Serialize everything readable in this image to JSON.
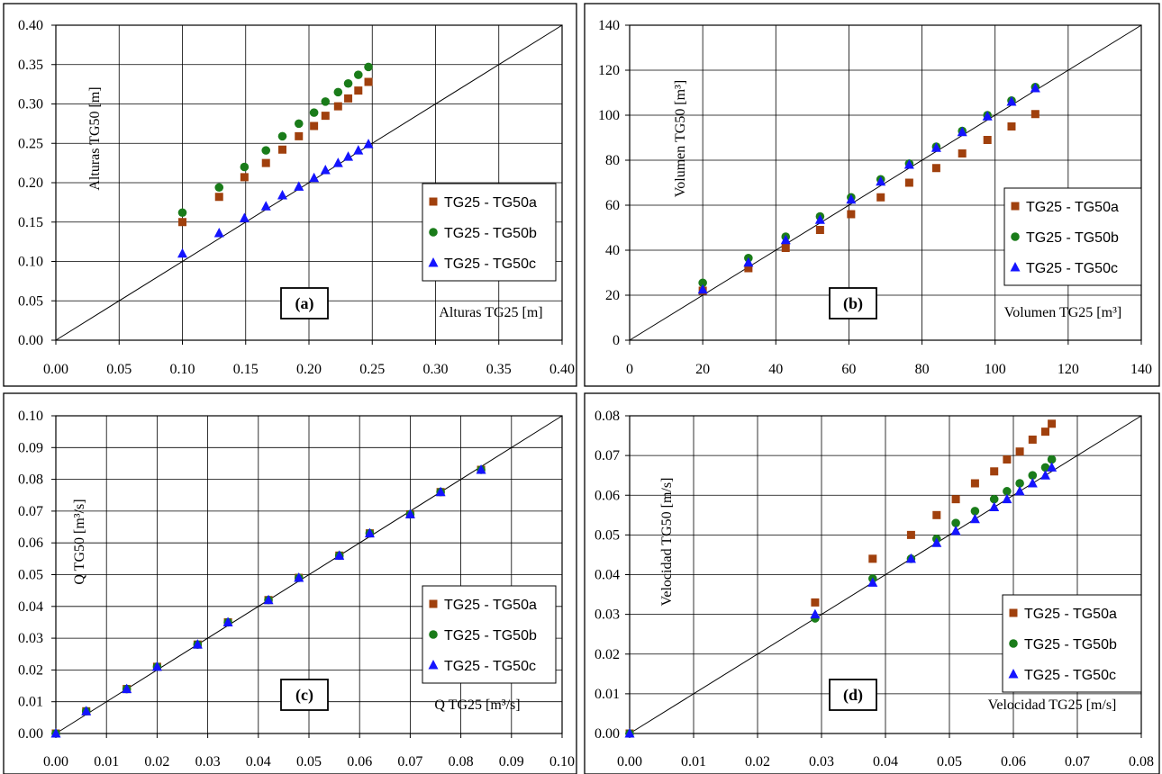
{
  "colors": {
    "series_a": "#a0400d",
    "series_b": "#1a7c1a",
    "series_c": "#1414ff",
    "grid": "#000000",
    "frame": "#000000"
  },
  "chart_data": [
    {
      "type": "scatter",
      "panel_label": "(a)",
      "xlabel": "Alturas TG25 [m]",
      "ylabel": "Alturas TG50 [m]",
      "xlim": [
        0,
        0.4
      ],
      "ylim": [
        0,
        0.4
      ],
      "x_ticks": [
        "0.00",
        "0.05",
        "0.10",
        "0.15",
        "0.20",
        "0.25",
        "0.30",
        "0.35",
        "0.40"
      ],
      "y_ticks": [
        "0.00",
        "0.05",
        "0.10",
        "0.15",
        "0.20",
        "0.25",
        "0.30",
        "0.35",
        "0.40"
      ],
      "grid": true,
      "identity_line": true,
      "legend_position": "right",
      "series": [
        {
          "name": "TG25 - TG50a",
          "marker": "square",
          "color": "#a0400d",
          "x": [
            0.1,
            0.129,
            0.149,
            0.166,
            0.179,
            0.192,
            0.204,
            0.213,
            0.223,
            0.231,
            0.239,
            0.247
          ],
          "y": [
            0.15,
            0.182,
            0.207,
            0.225,
            0.242,
            0.259,
            0.272,
            0.285,
            0.297,
            0.307,
            0.317,
            0.328
          ]
        },
        {
          "name": "TG25 - TG50b",
          "marker": "circle",
          "color": "#1a7c1a",
          "x": [
            0.1,
            0.129,
            0.149,
            0.166,
            0.179,
            0.192,
            0.204,
            0.213,
            0.223,
            0.231,
            0.239,
            0.247
          ],
          "y": [
            0.162,
            0.194,
            0.22,
            0.241,
            0.259,
            0.275,
            0.289,
            0.303,
            0.315,
            0.326,
            0.337,
            0.347
          ]
        },
        {
          "name": "TG25 - TG50c",
          "marker": "triangle",
          "color": "#1414ff",
          "x": [
            0.1,
            0.129,
            0.149,
            0.166,
            0.179,
            0.192,
            0.204,
            0.213,
            0.223,
            0.231,
            0.239,
            0.247
          ],
          "y": [
            0.11,
            0.136,
            0.155,
            0.17,
            0.184,
            0.195,
            0.206,
            0.216,
            0.225,
            0.233,
            0.241,
            0.249
          ]
        }
      ]
    },
    {
      "type": "scatter",
      "panel_label": "(b)",
      "xlabel": "Volumen TG25 [m³]",
      "ylabel": "Volumen TG50 [m³]",
      "xlim": [
        0,
        140
      ],
      "ylim": [
        0,
        140
      ],
      "x_ticks": [
        "0",
        "20",
        "40",
        "60",
        "80",
        "100",
        "120",
        "140"
      ],
      "y_ticks": [
        "0",
        "20",
        "40",
        "60",
        "80",
        "100",
        "120",
        "140"
      ],
      "grid": true,
      "identity_line": true,
      "legend_position": "right",
      "series": [
        {
          "name": "TG25 - TG50a",
          "marker": "square",
          "color": "#a0400d",
          "x": [
            20,
            32.5,
            42.7,
            52.1,
            60.6,
            68.7,
            76.5,
            83.9,
            91,
            97.9,
            104.5,
            111
          ],
          "y": [
            22,
            32,
            41,
            49,
            56,
            63.5,
            70,
            76.5,
            83,
            89,
            95,
            100.5
          ]
        },
        {
          "name": "TG25 - TG50b",
          "marker": "circle",
          "color": "#1a7c1a",
          "x": [
            20,
            32.5,
            42.7,
            52.1,
            60.6,
            68.7,
            76.5,
            83.9,
            91,
            97.9,
            104.5,
            111
          ],
          "y": [
            25.5,
            36.5,
            46,
            55,
            63.5,
            71.5,
            78.5,
            86,
            93,
            100,
            106.5,
            112.5
          ]
        },
        {
          "name": "TG25 - TG50c",
          "marker": "triangle",
          "color": "#1414ff",
          "x": [
            20,
            32.5,
            42.7,
            52.1,
            60.6,
            68.7,
            76.5,
            83.9,
            91,
            97.9,
            104.5,
            111
          ],
          "y": [
            22.5,
            34.5,
            44.5,
            53.5,
            62.5,
            70.5,
            78,
            85.5,
            92.5,
            99.5,
            106,
            112
          ]
        }
      ]
    },
    {
      "type": "scatter",
      "panel_label": "(c)",
      "xlabel": "Q TG25 [m³/s]",
      "ylabel": "Q TG50 [m³/s]",
      "xlim": [
        0,
        0.1
      ],
      "ylim": [
        0,
        0.1
      ],
      "x_ticks": [
        "0.00",
        "0.01",
        "0.02",
        "0.03",
        "0.04",
        "0.05",
        "0.06",
        "0.07",
        "0.08",
        "0.09",
        "0.10"
      ],
      "y_ticks": [
        "0.00",
        "0.01",
        "0.02",
        "0.03",
        "0.04",
        "0.05",
        "0.06",
        "0.07",
        "0.08",
        "0.09",
        "0.10"
      ],
      "grid": true,
      "identity_line": true,
      "legend_position": "right",
      "series": [
        {
          "name": "TG25 - TG50a",
          "marker": "square",
          "color": "#a0400d",
          "x": [
            0,
            0.006,
            0.014,
            0.02,
            0.028,
            0.034,
            0.042,
            0.048,
            0.056,
            0.062,
            0.07,
            0.076,
            0.084
          ],
          "y": [
            0,
            0.007,
            0.014,
            0.021,
            0.028,
            0.035,
            0.042,
            0.049,
            0.056,
            0.063,
            0.069,
            0.076,
            0.083
          ]
        },
        {
          "name": "TG25 - TG50b",
          "marker": "circle",
          "color": "#1a7c1a",
          "x": [
            0,
            0.006,
            0.014,
            0.02,
            0.028,
            0.034,
            0.042,
            0.048,
            0.056,
            0.062,
            0.07,
            0.076,
            0.084
          ],
          "y": [
            0,
            0.007,
            0.014,
            0.021,
            0.028,
            0.035,
            0.042,
            0.049,
            0.056,
            0.063,
            0.069,
            0.076,
            0.083
          ]
        },
        {
          "name": "TG25 - TG50c",
          "marker": "triangle",
          "color": "#1414ff",
          "x": [
            0,
            0.006,
            0.014,
            0.02,
            0.028,
            0.034,
            0.042,
            0.048,
            0.056,
            0.062,
            0.07,
            0.076,
            0.084
          ],
          "y": [
            0,
            0.007,
            0.014,
            0.021,
            0.028,
            0.035,
            0.042,
            0.049,
            0.056,
            0.063,
            0.069,
            0.076,
            0.083
          ]
        }
      ]
    },
    {
      "type": "scatter",
      "panel_label": "(d)",
      "xlabel": "Velocidad TG25 [m/s]",
      "ylabel": "Velocidad TG50 [m/s]",
      "xlim": [
        0,
        0.08
      ],
      "ylim": [
        0,
        0.08
      ],
      "x_ticks": [
        "0.00",
        "0.01",
        "0.02",
        "0.03",
        "0.04",
        "0.05",
        "0.06",
        "0.07",
        "0.08"
      ],
      "y_ticks": [
        "0.00",
        "0.01",
        "0.02",
        "0.03",
        "0.04",
        "0.05",
        "0.06",
        "0.07",
        "0.08"
      ],
      "grid": true,
      "identity_line": true,
      "legend_position": "right",
      "series": [
        {
          "name": "TG25 - TG50a",
          "marker": "square",
          "color": "#a0400d",
          "x": [
            0,
            0.029,
            0.038,
            0.044,
            0.048,
            0.051,
            0.054,
            0.057,
            0.059,
            0.061,
            0.063,
            0.065,
            0.066
          ],
          "y": [
            0,
            0.033,
            0.044,
            0.05,
            0.055,
            0.059,
            0.063,
            0.066,
            0.069,
            0.071,
            0.074,
            0.076,
            0.078
          ]
        },
        {
          "name": "TG25 - TG50b",
          "marker": "circle",
          "color": "#1a7c1a",
          "x": [
            0,
            0.029,
            0.038,
            0.044,
            0.048,
            0.051,
            0.054,
            0.057,
            0.059,
            0.061,
            0.063,
            0.065,
            0.066
          ],
          "y": [
            0,
            0.029,
            0.039,
            0.044,
            0.049,
            0.053,
            0.056,
            0.059,
            0.061,
            0.063,
            0.065,
            0.067,
            0.069
          ]
        },
        {
          "name": "TG25 - TG50c",
          "marker": "triangle",
          "color": "#1414ff",
          "x": [
            0,
            0.029,
            0.038,
            0.044,
            0.048,
            0.051,
            0.054,
            0.057,
            0.059,
            0.061,
            0.063,
            0.065,
            0.066
          ],
          "y": [
            0,
            0.03,
            0.038,
            0.044,
            0.048,
            0.051,
            0.054,
            0.057,
            0.059,
            0.061,
            0.063,
            0.065,
            0.067
          ]
        }
      ]
    }
  ]
}
